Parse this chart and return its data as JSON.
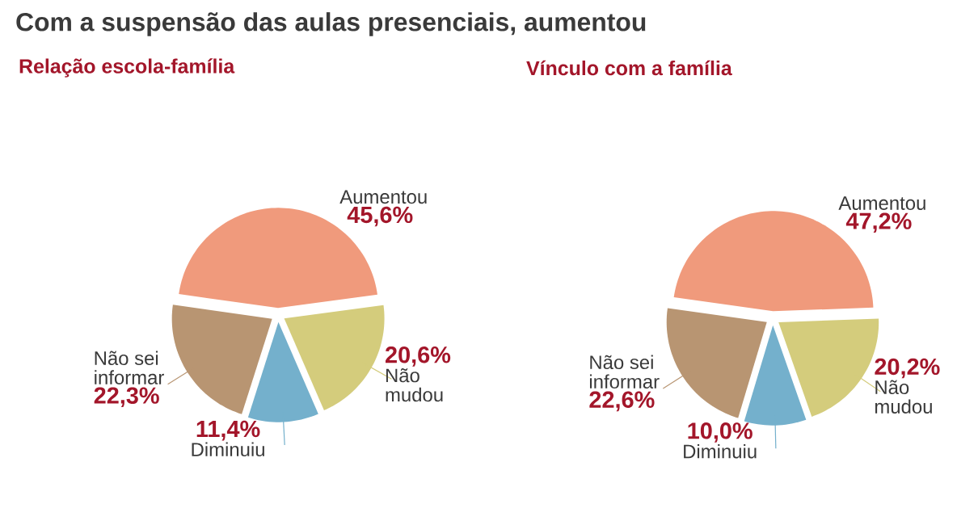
{
  "chart_data": [
    {
      "type": "pie",
      "title": "Com a suspensão das aulas presenciais, aumentou",
      "subtitle": "Relação escola-família",
      "categories": [
        "Aumentou",
        "Não mudou",
        "Diminuiu",
        "Não sei informar"
      ],
      "values": [
        45.6,
        20.6,
        11.4,
        22.3
      ],
      "value_labels": [
        "45,6%",
        "20,6%",
        "11,4%",
        "22,3%"
      ],
      "colors": [
        "#f09a7c",
        "#d4cc7c",
        "#74b0cc",
        "#b89572"
      ]
    },
    {
      "type": "pie",
      "subtitle": "Vínculo com a família",
      "categories": [
        "Aumentou",
        "Não mudou",
        "Diminuiu",
        "Não sei informar"
      ],
      "values": [
        47.2,
        20.2,
        10.0,
        22.6
      ],
      "value_labels": [
        "47,2%",
        "20,2%",
        "10,0%",
        "22,6%"
      ],
      "colors": [
        "#f09a7c",
        "#d4cc7c",
        "#74b0cc",
        "#b89572"
      ]
    }
  ]
}
